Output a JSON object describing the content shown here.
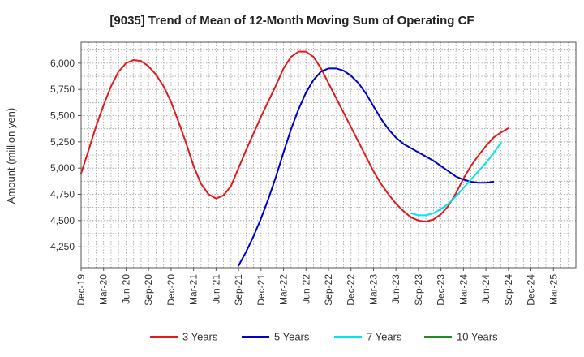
{
  "chart_data": {
    "type": "line",
    "title": "[9035]  Trend of Mean of 12-Month Moving Sum of Operating CF",
    "xlabel": "",
    "ylabel": "Amount (million yen)",
    "ylim": [
      4050,
      6200
    ],
    "yticks": [
      4250,
      4500,
      4750,
      5000,
      5250,
      5500,
      5750,
      6000
    ],
    "ytick_labels": [
      "4,250",
      "4,500",
      "4,750",
      "5,000",
      "5,250",
      "5,500",
      "5,750",
      "6,000"
    ],
    "x_months_total": 66,
    "xtick_labels": [
      "Dec-19",
      "Mar-20",
      "Jun-20",
      "Sep-20",
      "Dec-20",
      "Mar-21",
      "Jun-21",
      "Sep-21",
      "Dec-21",
      "Mar-22",
      "Jun-22",
      "Sep-22",
      "Dec-22",
      "Mar-23",
      "Jun-23",
      "Sep-23",
      "Dec-23",
      "Mar-24",
      "Jun-24",
      "Sep-24",
      "Dec-24",
      "Mar-25"
    ],
    "grid": true,
    "legend_position": "bottom",
    "series": [
      {
        "name": "3 Years",
        "color": "#e31a1c",
        "start_index": 0,
        "values": [
          4950,
          5170,
          5400,
          5600,
          5780,
          5920,
          6000,
          6030,
          6020,
          5970,
          5890,
          5780,
          5630,
          5440,
          5240,
          5020,
          4850,
          4750,
          4710,
          4740,
          4830,
          5000,
          5170,
          5330,
          5490,
          5640,
          5790,
          5950,
          6060,
          6110,
          6110,
          6060,
          5950,
          5810,
          5670,
          5530,
          5390,
          5250,
          5110,
          4970,
          4850,
          4750,
          4660,
          4590,
          4530,
          4500,
          4490,
          4510,
          4560,
          4640,
          4760,
          4900,
          5020,
          5120,
          5210,
          5290,
          5340,
          5380
        ]
      },
      {
        "name": "5 Years",
        "color": "#0000cc",
        "start_index": 21,
        "values": [
          4070,
          4200,
          4350,
          4520,
          4710,
          4920,
          5150,
          5370,
          5560,
          5720,
          5840,
          5920,
          5950,
          5950,
          5930,
          5880,
          5810,
          5710,
          5590,
          5470,
          5370,
          5290,
          5230,
          5190,
          5150,
          5110,
          5070,
          5020,
          4970,
          4920,
          4890,
          4870,
          4860,
          4860,
          4870
        ]
      },
      {
        "name": "7 Years",
        "color": "#00e5ee",
        "start_index": 44,
        "values": [
          4570,
          4550,
          4550,
          4570,
          4610,
          4660,
          4730,
          4810,
          4890,
          4970,
          5050,
          5140,
          5240
        ]
      },
      {
        "name": "10 Years",
        "color": "#228b22",
        "start_index": 0,
        "values": []
      }
    ]
  }
}
